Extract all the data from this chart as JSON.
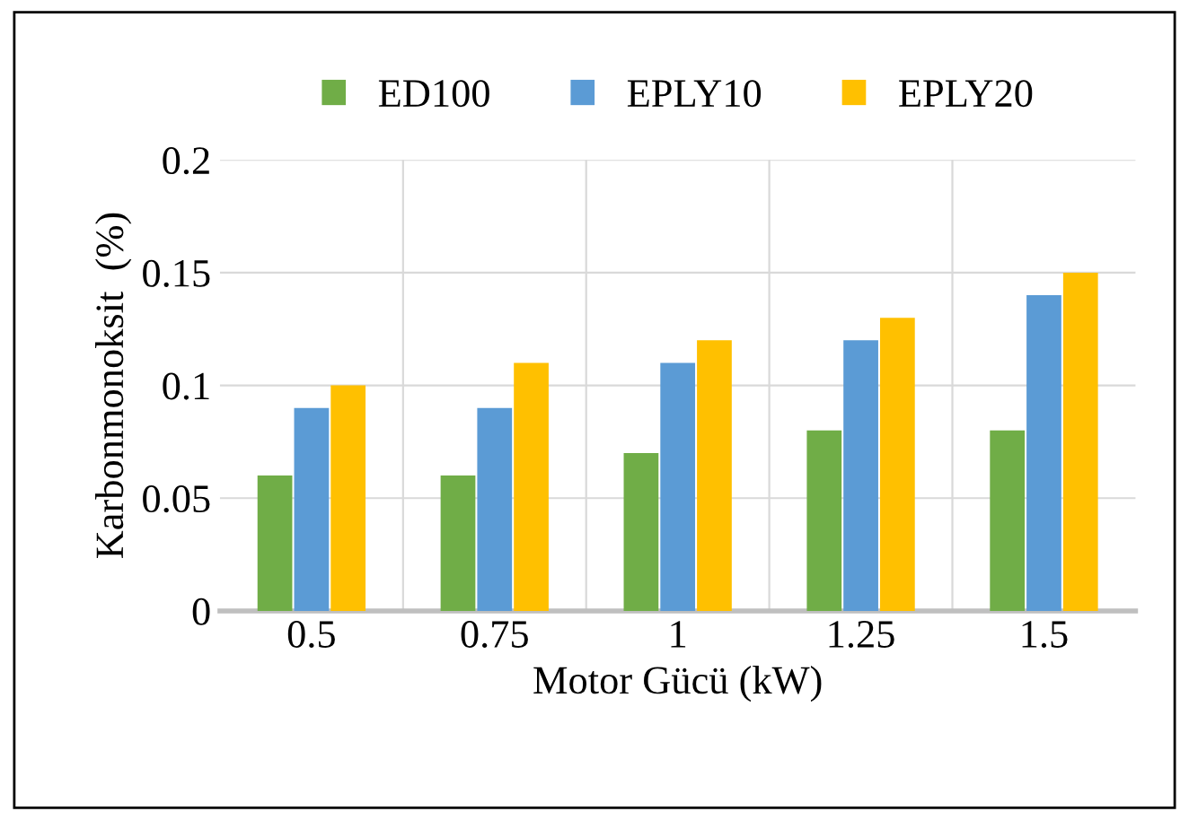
{
  "chart_data": {
    "type": "bar",
    "xlabel": "Motor Gücü (kW)",
    "ylabel": "Karbonmonoksit  (%)",
    "categories": [
      "0.5",
      "0.75",
      "1",
      "1.25",
      "1.5"
    ],
    "series": [
      {
        "name": "ED100",
        "color": "#70ad47",
        "values": [
          0.06,
          0.06,
          0.07,
          0.08,
          0.08
        ]
      },
      {
        "name": "EPLY10",
        "color": "#5b9bd5",
        "values": [
          0.09,
          0.09,
          0.11,
          0.12,
          0.14
        ]
      },
      {
        "name": "EPLY20",
        "color": "#ffc000",
        "values": [
          0.1,
          0.11,
          0.12,
          0.13,
          0.15
        ]
      }
    ],
    "ylim": [
      0,
      0.2
    ],
    "yticks": [
      0,
      0.05,
      0.1,
      0.15,
      0.2
    ],
    "grid": true,
    "legend": "top"
  }
}
